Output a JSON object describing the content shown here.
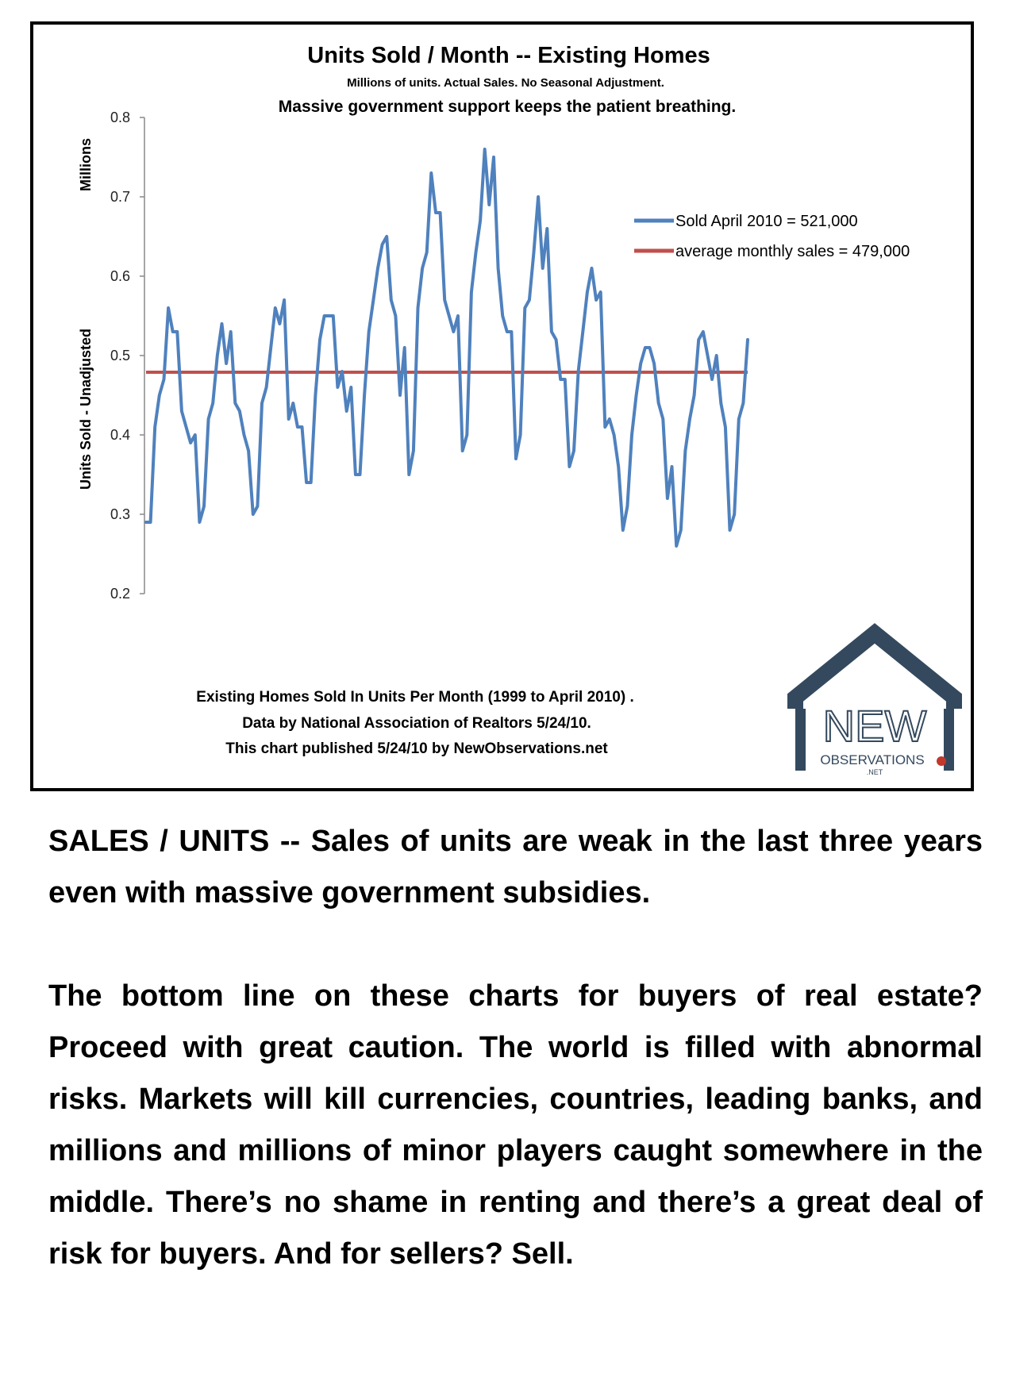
{
  "chart_data": {
    "type": "line",
    "title": "Units Sold / Month -- Existing Homes",
    "subtitle": "Millions of units. Actual Sales. No Seasonal Adjustment.",
    "subtitle2": "Massive government support keeps the patient breathing.",
    "ylabel_top": "Millions",
    "ylabel": "Units Sold - Unadjusted",
    "ylim": [
      0.2,
      0.8
    ],
    "yticks": [
      "0.8",
      "0.7",
      "0.6",
      "0.5",
      "0.4",
      "0.3",
      "0.2"
    ],
    "grid": false,
    "legend_position": "top-right",
    "x_period": "1999 to April 2010",
    "series": [
      {
        "name": "Sold April 2010 = 521,000",
        "color": "#4f81bd",
        "values": [
          0.29,
          0.29,
          0.41,
          0.45,
          0.47,
          0.56,
          0.53,
          0.53,
          0.43,
          0.41,
          0.39,
          0.4,
          0.29,
          0.31,
          0.42,
          0.44,
          0.5,
          0.54,
          0.49,
          0.53,
          0.44,
          0.43,
          0.4,
          0.38,
          0.3,
          0.31,
          0.44,
          0.46,
          0.51,
          0.56,
          0.54,
          0.57,
          0.42,
          0.44,
          0.41,
          0.41,
          0.34,
          0.34,
          0.45,
          0.52,
          0.55,
          0.55,
          0.55,
          0.46,
          0.48,
          0.43,
          0.46,
          0.35,
          0.35,
          0.45,
          0.53,
          0.57,
          0.61,
          0.64,
          0.65,
          0.57,
          0.55,
          0.45,
          0.51,
          0.35,
          0.38,
          0.56,
          0.61,
          0.63,
          0.73,
          0.68,
          0.68,
          0.57,
          0.55,
          0.53,
          0.55,
          0.38,
          0.4,
          0.58,
          0.63,
          0.67,
          0.76,
          0.69,
          0.75,
          0.61,
          0.55,
          0.53,
          0.53,
          0.37,
          0.4,
          0.56,
          0.57,
          0.63,
          0.7,
          0.61,
          0.66,
          0.53,
          0.52,
          0.47,
          0.47,
          0.36,
          0.38,
          0.48,
          0.53,
          0.58,
          0.61,
          0.57,
          0.58,
          0.41,
          0.42,
          0.4,
          0.36,
          0.28,
          0.31,
          0.4,
          0.45,
          0.49,
          0.51,
          0.51,
          0.49,
          0.44,
          0.42,
          0.32,
          0.36,
          0.26,
          0.28,
          0.38,
          0.42,
          0.45,
          0.52,
          0.53,
          0.5,
          0.47,
          0.5,
          0.44,
          0.41,
          0.28,
          0.3,
          0.42,
          0.44,
          0.52
        ]
      },
      {
        "name": "average monthly sales = 479,000",
        "color": "#c0504d",
        "constant": 0.479
      }
    ],
    "notes": [
      "Existing Homes Sold In Units Per Month (1999 to April 2010) .",
      "Data by National Association of Realtors 5/24/10.",
      "This chart published 5/24/10 by NewObservations.net"
    ]
  },
  "logo": {
    "text_main": "NEW",
    "text_sub": "OBSERVATIONS",
    "text_net": ".NET",
    "color": "#34495e",
    "accent": "#c0392b"
  },
  "body": {
    "para1": "SALES / UNITS -- Sales of units are weak in the last three years even with massive government subsidies.",
    "para2": "The bottom line on these charts for buyers of real estate? Proceed with great caution. The world is filled with abnormal risks. Markets will kill currencies, countries, leading banks, and millions and millions of minor players caught somewhere in the middle. There’s no shame in renting and there’s a great deal of risk for buyers. And for sellers? Sell."
  }
}
